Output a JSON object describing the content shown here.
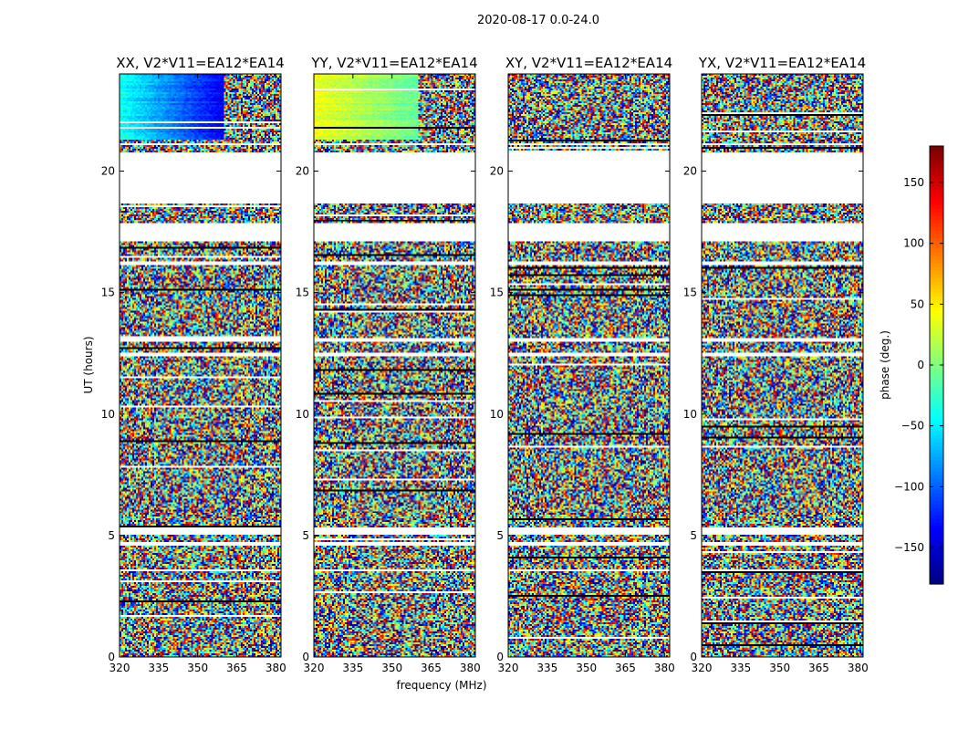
{
  "figure": {
    "title": "2020-08-17 0.0-24.0"
  },
  "chart_data": [
    {
      "type": "heatmap",
      "title": "XX, V2*V11=EA12*EA14",
      "xlabel": "",
      "ylabel": "UT (hours)",
      "xlim": [
        320,
        382
      ],
      "ylim": [
        0,
        24
      ],
      "xticks": [
        "320",
        "335",
        "350",
        "365",
        "380"
      ],
      "xtick_values": [
        320,
        335,
        350,
        365,
        380
      ],
      "yticks": [
        "0",
        "5",
        "10",
        "15",
        "20"
      ],
      "ytick_values": [
        0,
        5,
        10,
        15,
        20
      ],
      "mode": "coherent-gradient",
      "coherent_phase": [
        -40,
        -140
      ]
    },
    {
      "type": "heatmap",
      "title": "YY, V2*V11=EA12*EA14",
      "xlabel": "frequency (MHz)",
      "ylabel": "",
      "xlim": [
        320,
        382
      ],
      "ylim": [
        0,
        24
      ],
      "xticks": [
        "320",
        "335",
        "350",
        "365",
        "380"
      ],
      "xtick_values": [
        320,
        335,
        350,
        365,
        380
      ],
      "yticks": [
        "0",
        "5",
        "10",
        "15",
        "20"
      ],
      "ytick_values": [
        0,
        5,
        10,
        15,
        20
      ],
      "mode": "coherent-gradient",
      "coherent_phase": [
        40,
        -10
      ]
    },
    {
      "type": "heatmap",
      "title": "XY, V2*V11=EA12*EA14",
      "xlabel": "",
      "ylabel": "",
      "xlim": [
        320,
        382
      ],
      "ylim": [
        0,
        24
      ],
      "xticks": [
        "320",
        "335",
        "350",
        "365",
        "380"
      ],
      "xtick_values": [
        320,
        335,
        350,
        365,
        380
      ],
      "yticks": [
        "0",
        "5",
        "10",
        "15",
        "20"
      ],
      "ytick_values": [
        0,
        5,
        10,
        15,
        20
      ],
      "mode": "noise"
    },
    {
      "type": "heatmap",
      "title": "YX, V2*V11=EA12*EA14",
      "xlabel": "",
      "ylabel": "",
      "xlim": [
        320,
        382
      ],
      "ylim": [
        0,
        24
      ],
      "xticks": [
        "320",
        "335",
        "350",
        "365",
        "380"
      ],
      "xtick_values": [
        320,
        335,
        350,
        365,
        380
      ],
      "yticks": [
        "0",
        "5",
        "10",
        "15",
        "20"
      ],
      "ytick_values": [
        0,
        5,
        10,
        15,
        20
      ],
      "mode": "noise"
    }
  ],
  "colorbar": {
    "label": "phase (deg.)",
    "range": [
      -180,
      180
    ],
    "ticks": [
      "−150",
      "−100",
      "−50",
      "0",
      "50",
      "100",
      "150"
    ],
    "tick_values": [
      -150,
      -100,
      -50,
      0,
      50,
      100,
      150
    ],
    "colormap": "jet"
  },
  "data_gaps_hours": [
    [
      18.7,
      20.8
    ],
    [
      17.1,
      17.85
    ],
    [
      16.1,
      16.25
    ],
    [
      13.0,
      13.15
    ],
    [
      12.4,
      12.55
    ],
    [
      5.0,
      5.3
    ],
    [
      4.6,
      4.7
    ],
    [
      3.5,
      3.6
    ],
    [
      21.05,
      21.15
    ]
  ],
  "coherent_span_hours": [
    21.3,
    24.0
  ]
}
